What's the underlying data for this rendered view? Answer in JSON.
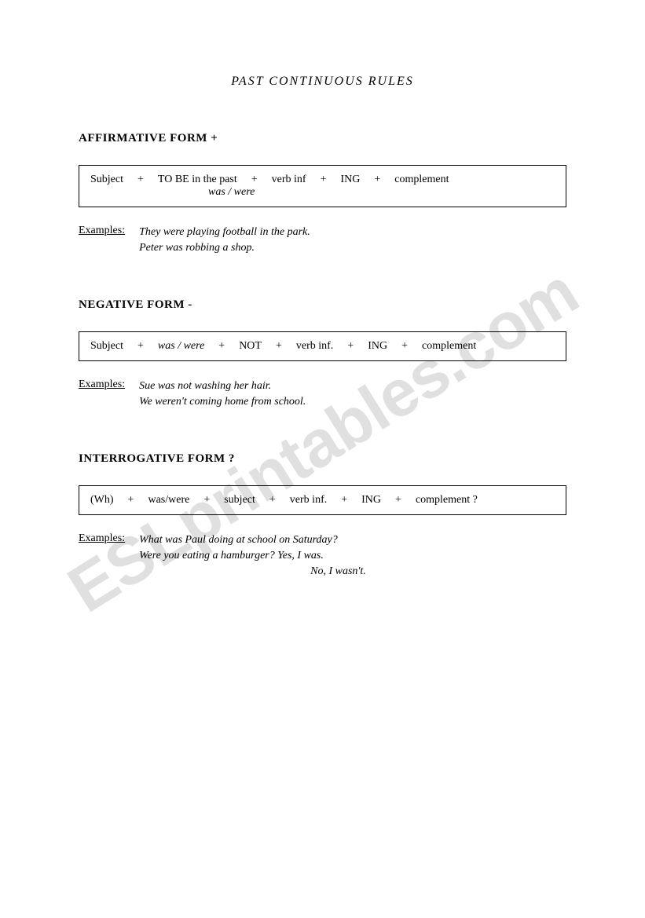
{
  "title": "PAST CONTINUOUS RULES",
  "watermark": "ESLprintables.com",
  "sections": {
    "affirmative": {
      "header": "AFFIRMATIVE FORM  +",
      "formula": {
        "parts": [
          "Subject",
          "+",
          "TO BE in the past",
          "+",
          "verb inf",
          "+",
          "ING",
          "+",
          "complement"
        ],
        "sub": "was / were"
      },
      "examples_label": "Examples:",
      "examples": [
        "They were playing football in the park.",
        "Peter was robbing a shop."
      ]
    },
    "negative": {
      "header": "NEGATIVE FORM  -",
      "formula": {
        "parts": [
          "Subject",
          "+",
          "was / were",
          "+",
          "NOT",
          "+",
          "verb inf.",
          "+",
          "ING",
          "+",
          "complement"
        ]
      },
      "examples_label": "Examples:",
      "examples": [
        "Sue was not washing her hair.",
        "We weren't coming home from school."
      ]
    },
    "interrogative": {
      "header": "INTERROGATIVE FORM  ?",
      "formula": {
        "parts": [
          "(Wh)",
          "+",
          "was/were",
          "+",
          "subject",
          "+",
          "verb inf.",
          "+",
          "ING",
          "+",
          "complement ?"
        ]
      },
      "examples_label": "Examples:",
      "examples": [
        "What was Paul doing at school on Saturday?",
        "Were you eating a hamburger? Yes, I was."
      ],
      "answer_line": "No, I wasn't."
    }
  }
}
